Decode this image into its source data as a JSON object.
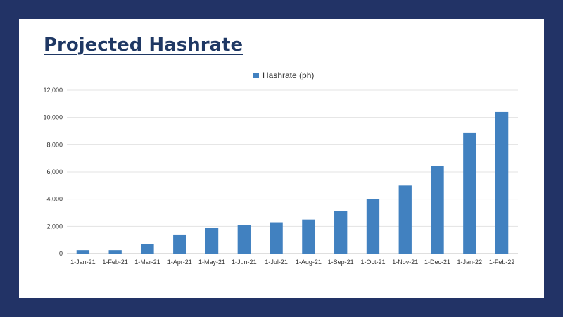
{
  "slide": {
    "title": "Projected Hashrate"
  },
  "chart_data": {
    "type": "bar",
    "title": "",
    "xlabel": "",
    "ylabel": "",
    "categories": [
      "1-Jan-21",
      "1-Feb-21",
      "1-Mar-21",
      "1-Apr-21",
      "1-May-21",
      "1-Jun-21",
      "1-Jul-21",
      "1-Aug-21",
      "1-Sep-21",
      "1-Oct-21",
      "1-Nov-21",
      "1-Dec-21",
      "1-Jan-22",
      "1-Feb-22"
    ],
    "series": [
      {
        "name": "Hashrate (ph)",
        "color": "#4181c0",
        "values": [
          250,
          250,
          700,
          1400,
          1900,
          2100,
          2300,
          2500,
          3150,
          4000,
          5000,
          6450,
          8850,
          10400
        ]
      }
    ],
    "ylim": [
      0,
      12000
    ],
    "yticks": [
      0,
      2000,
      4000,
      6000,
      8000,
      10000,
      12000
    ],
    "ytick_labels": [
      "0",
      "2,000",
      "4,000",
      "6,000",
      "8,000",
      "10,000",
      "12,000"
    ],
    "grid": true,
    "legend": "top"
  }
}
